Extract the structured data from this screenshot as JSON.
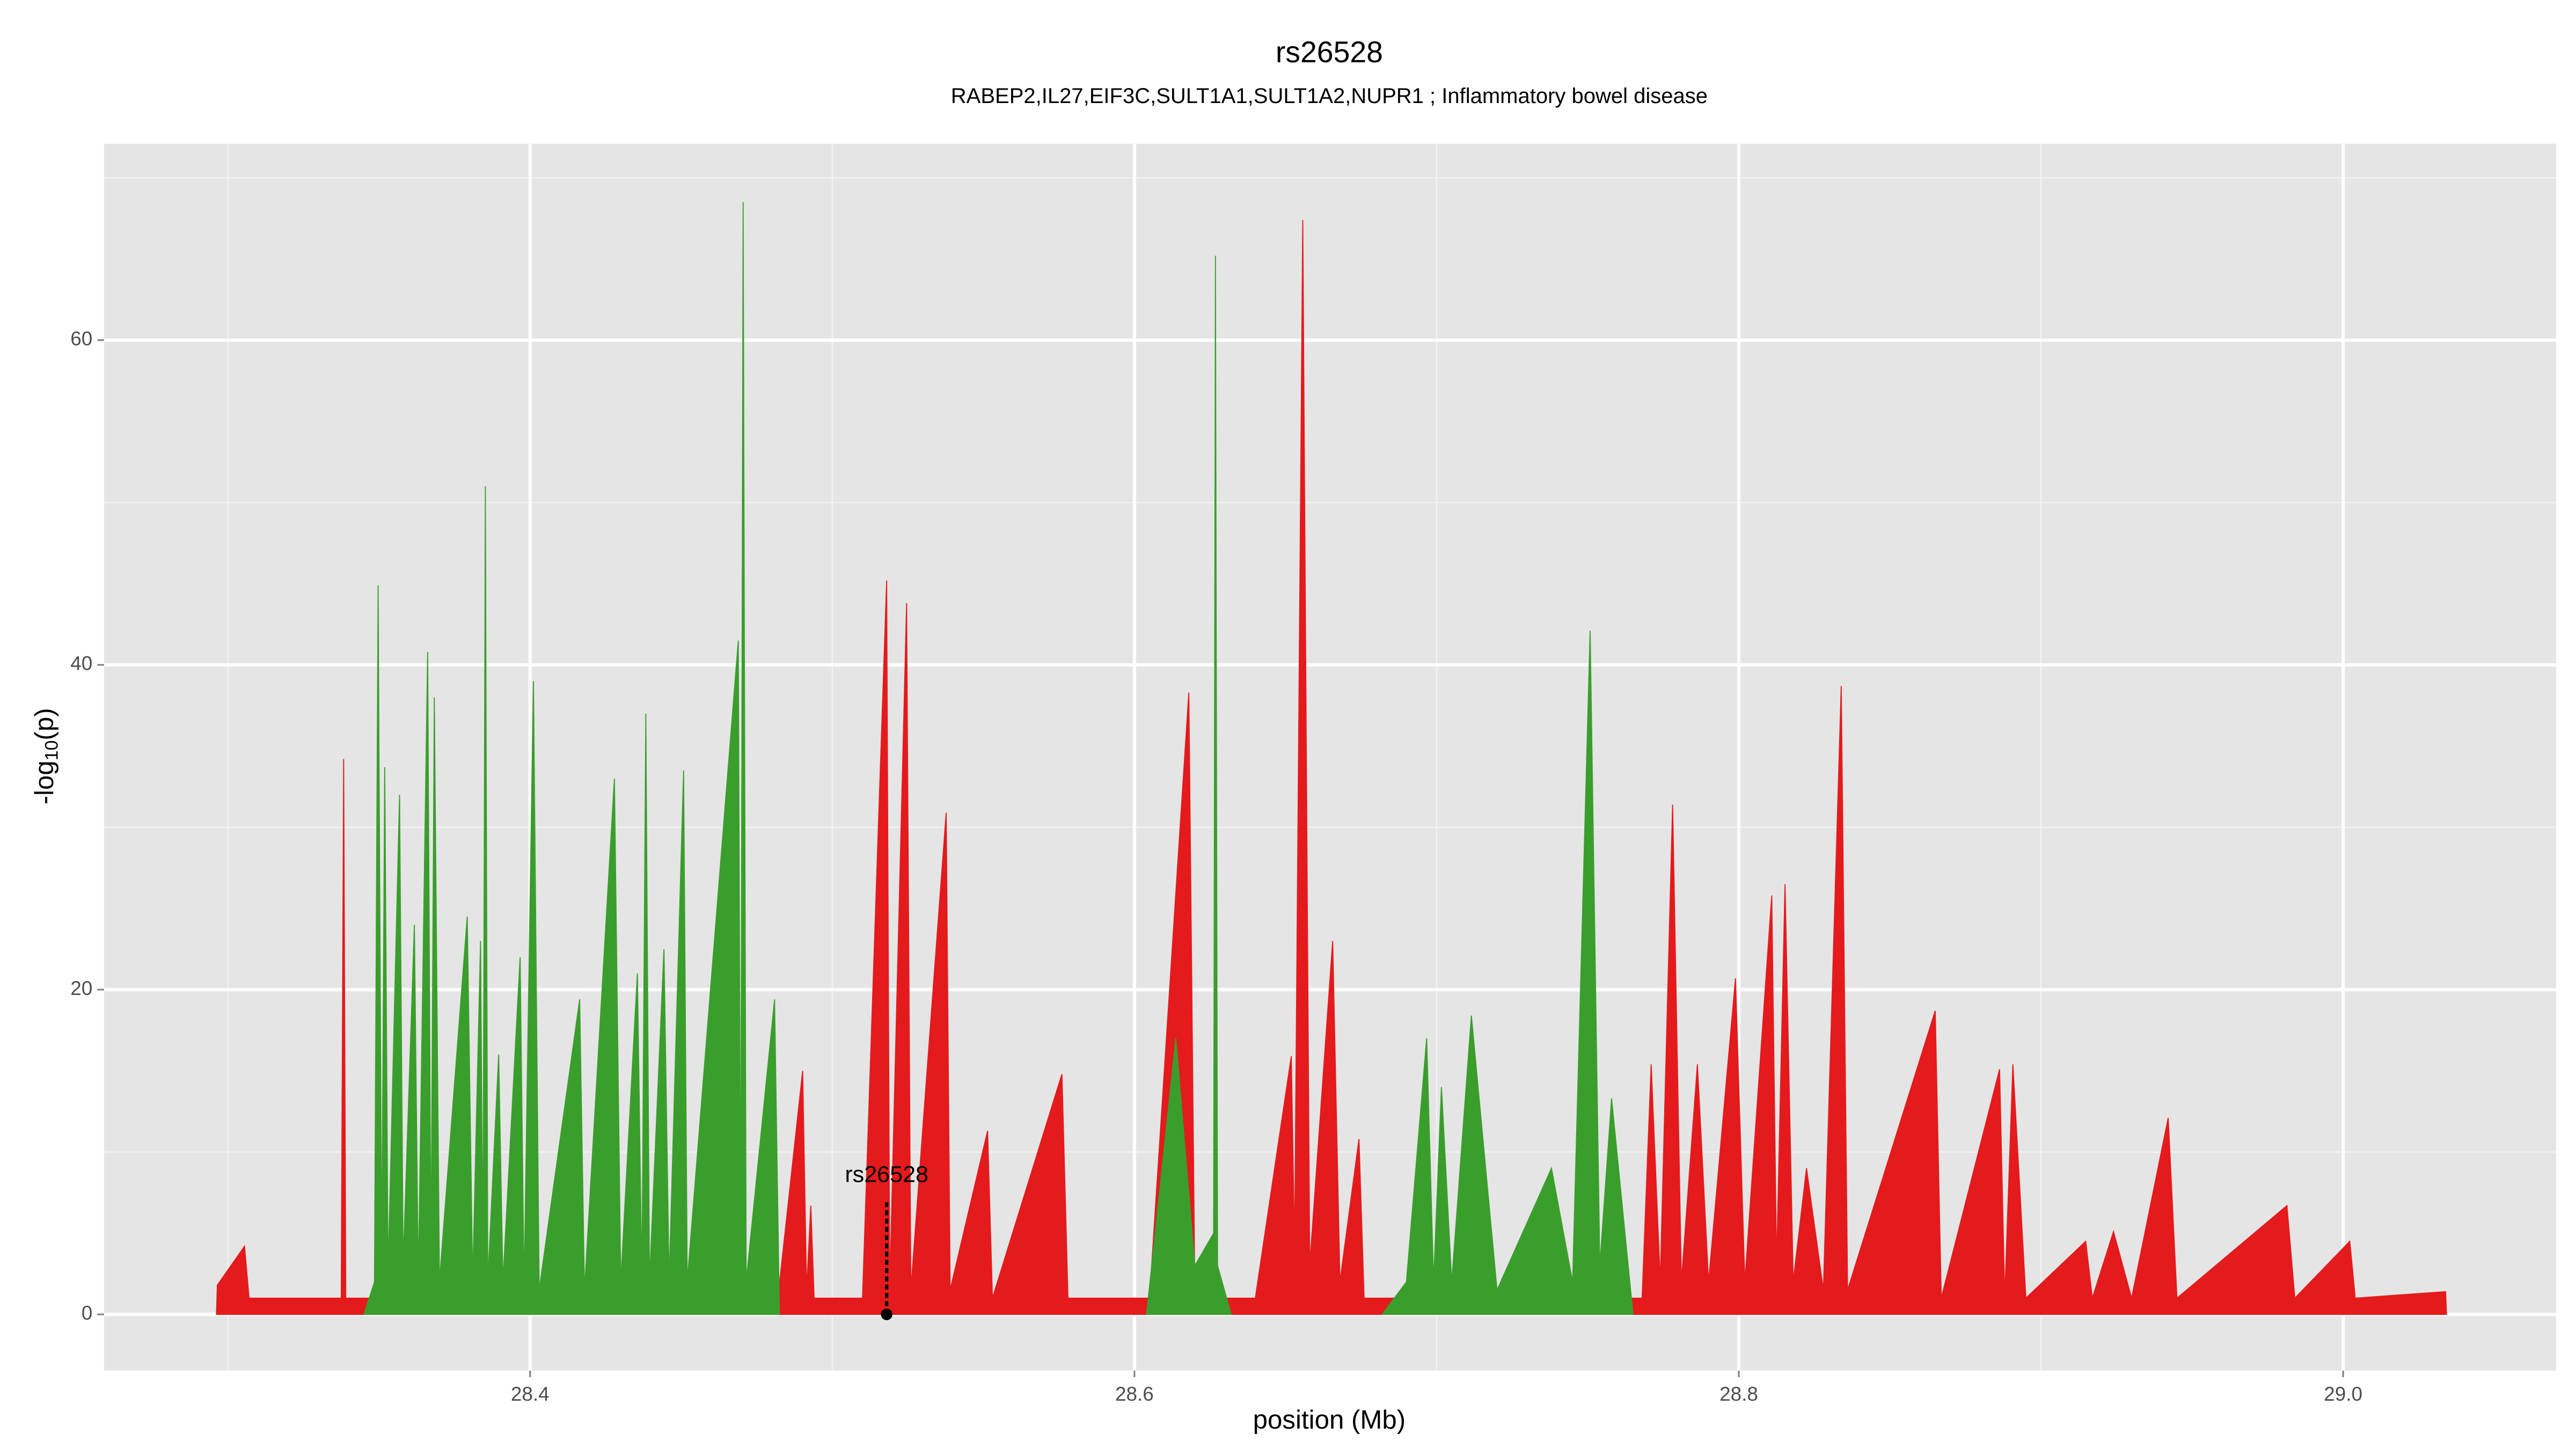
{
  "chart_data": {
    "type": "area",
    "title": "rs26528",
    "subtitle": "RABEP2,IL27,EIF3C,SULT1A1,SULT1A2,NUPR1 ; Inflammatory bowel disease",
    "x_label": "position (Mb)",
    "y_label": {
      "before": "-log",
      "sub": "10",
      "after": "(p)"
    },
    "xlim": [
      28.259,
      29.0705
    ],
    "ylim": [
      -3.46,
      72.1
    ],
    "xticks": [
      28.4,
      28.6,
      28.8,
      {
        "value": 29,
        "label": "29.0"
      }
    ],
    "yticks": [
      0,
      20,
      40,
      60
    ],
    "grid": true,
    "series": [
      {
        "color": "#e41a1c",
        "x": [
          28.2962,
          28.2965,
          28.3055,
          28.307,
          28.3375,
          28.3383,
          28.339,
          28.482,
          28.4902,
          28.4915,
          28.4929,
          28.494,
          28.51,
          28.518,
          28.519,
          28.5246,
          28.526,
          28.5377,
          28.539,
          28.5514,
          28.553,
          28.576,
          28.578,
          28.605,
          28.618,
          28.62,
          28.64,
          28.6519,
          28.653,
          28.6557,
          28.658,
          28.6656,
          28.668,
          28.6743,
          28.676,
          28.768,
          28.771,
          28.774,
          28.7781,
          28.781,
          28.7863,
          28.79,
          28.7989,
          28.802,
          28.8109,
          28.8125,
          28.8153,
          28.818,
          28.8224,
          28.828,
          28.8339,
          28.836,
          28.865,
          28.867,
          28.8863,
          28.888,
          28.8907,
          28.895,
          28.9148,
          28.917,
          28.924,
          28.93,
          28.9421,
          28.945,
          28.9814,
          28.984,
          29.0022,
          29.004,
          29.0339,
          29.0342
        ],
        "values": [
          0,
          1.8,
          4.2,
          1,
          1,
          34.2,
          1,
          1,
          15,
          1.5,
          6.7,
          1,
          1,
          45.2,
          1.5,
          43.8,
          1.5,
          30.9,
          1.5,
          11.3,
          1,
          14.8,
          1,
          1,
          38.3,
          1,
          1,
          15.9,
          4,
          67.4,
          3,
          23,
          2,
          10.8,
          1,
          1,
          15.4,
          2,
          31.4,
          2,
          15.4,
          2,
          20.7,
          2,
          25.8,
          3,
          26.5,
          2,
          9,
          1.5,
          38.7,
          1.5,
          18.7,
          1,
          15.1,
          1,
          15.4,
          1,
          4.5,
          1,
          5.1,
          1,
          12.1,
          1,
          6.7,
          1,
          4.5,
          1,
          1.4,
          0
        ]
      },
      {
        "color": "#3a9e2c",
        "x": [
          28.345,
          28.3485,
          28.3497,
          28.3509,
          28.3519,
          28.353,
          28.3568,
          28.358,
          28.3617,
          28.363,
          28.3661,
          28.3672,
          28.3683,
          28.37,
          28.3792,
          28.381,
          28.3836,
          28.3844,
          28.3852,
          28.386,
          28.3896,
          28.391,
          28.3967,
          28.398,
          28.4011,
          28.403,
          28.4164,
          28.418,
          28.4279,
          28.43,
          28.4355,
          28.437,
          28.4383,
          28.4395,
          28.4443,
          28.446,
          28.4508,
          28.452,
          28.4689,
          28.4697,
          28.4705,
          28.4715,
          28.4809,
          28.4825,
          null,
          28.604,
          28.6137,
          28.62,
          28.6262,
          28.6268,
          28.6275,
          28.632,
          null,
          28.682,
          28.69,
          28.6967,
          28.699,
          28.7016,
          28.705,
          28.7115,
          28.72,
          28.738,
          28.745,
          28.7508,
          28.754,
          28.7579,
          28.765
        ],
        "values": [
          0,
          2,
          44.9,
          3,
          33.7,
          2.5,
          32,
          3,
          24,
          2,
          40.8,
          3,
          38,
          2,
          24.5,
          2,
          23,
          3,
          51,
          2,
          16,
          2,
          22,
          1.5,
          39,
          1.5,
          19.4,
          1.5,
          33,
          2,
          21,
          2,
          37,
          2,
          22.5,
          2,
          33.5,
          2,
          41.5,
          3,
          68.5,
          2,
          19.4,
          0,
          null,
          0,
          17,
          3,
          5,
          65.2,
          3,
          0,
          null,
          0,
          2,
          17,
          2,
          14,
          2,
          18.4,
          1.5,
          9,
          2,
          42.1,
          3,
          13.3,
          0
        ]
      }
    ],
    "annotation": {
      "label": "rs26528",
      "x": 28.518,
      "y": 0,
      "line_to": 6.9
    }
  }
}
